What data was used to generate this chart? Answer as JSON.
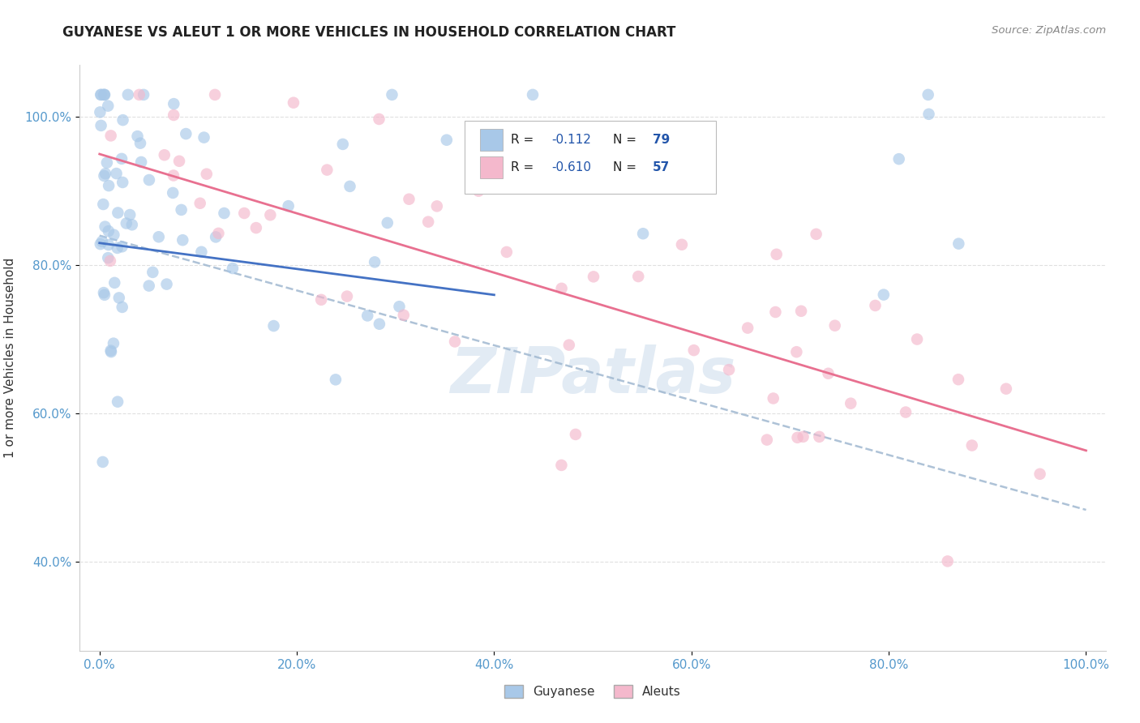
{
  "title": "GUYANESE VS ALEUT 1 OR MORE VEHICLES IN HOUSEHOLD CORRELATION CHART",
  "source_text": "Source: ZipAtlas.com",
  "ylabel": "1 or more Vehicles in Household",
  "watermark": "ZIPatlas",
  "guyanese_color": "#a8c8e8",
  "aleut_color": "#f4b8cc",
  "guyanese_R": -0.112,
  "guyanese_N": 79,
  "aleut_R": -0.61,
  "aleut_N": 57,
  "legend_label_guyanese": "Guyanese",
  "legend_label_aleut": "Aleuts",
  "bg_color": "#ffffff",
  "grid_color": "#cccccc",
  "trend_blue_color": "#4472c4",
  "trend_pink_color": "#e87090",
  "trend_dashed_color": "#a0b8d0",
  "r_value_color": "#2255aa",
  "n_value_color": "#2255aa",
  "tick_color": "#5599cc",
  "guyanese_seed": 42,
  "aleut_seed": 7
}
